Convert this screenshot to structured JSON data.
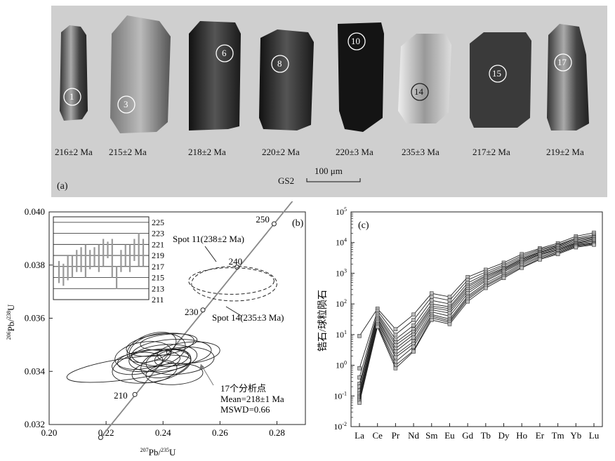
{
  "panel_a": {
    "letter": "(a)",
    "sample": "GS2",
    "scale_label": "100 μm",
    "grains": [
      {
        "spot": "1",
        "age": "216±2 Ma"
      },
      {
        "spot": "3",
        "age": "215±2 Ma"
      },
      {
        "spot": "6",
        "age": "218±2 Ma"
      },
      {
        "spot": "8",
        "age": "220±2 Ma"
      },
      {
        "spot": "10",
        "age": "220±3 Ma"
      },
      {
        "spot": "14",
        "age": "235±3 Ma"
      },
      {
        "spot": "15",
        "age": "217±2 Ma"
      },
      {
        "spot": "17",
        "age": "219±2 Ma"
      }
    ]
  },
  "panel_b": {
    "letter": "(b)",
    "concordia_ages": [
      "210",
      "230",
      "240",
      "250"
    ],
    "inset_ticks": [
      "225",
      "223",
      "221",
      "219",
      "217",
      "215",
      "213",
      "211"
    ],
    "spot11_label": "Spot 11(238±2 Ma)",
    "spot14_label": "Spot 14(235±3 Ma)",
    "result_count": "17个分析点",
    "result_mean": "Mean=218±1 Ma",
    "result_mswd": "MSWD=0.66"
  },
  "panel_c": {
    "letter": "(c)"
  },
  "chart_data": [
    {
      "type": "scatter",
      "panel": "b",
      "xlabel": "207Pb/235U",
      "ylabel": "206Pb/238U",
      "xlim": [
        0.2,
        0.29
      ],
      "ylim": [
        0.032,
        0.04
      ],
      "x_ticks": [
        "0.20",
        "0.22",
        "0.24",
        "0.26",
        "0.28"
      ],
      "y_ticks": [
        "0.032",
        "0.034",
        "0.036",
        "0.038",
        "0.040"
      ],
      "concordia_points": [
        {
          "age": 200,
          "x": 0.2181,
          "y": 0.03151
        },
        {
          "age": 210,
          "x": 0.2301,
          "y": 0.03313
        },
        {
          "age": 220,
          "x": 0.242,
          "y": 0.03471
        },
        {
          "age": 230,
          "x": 0.254,
          "y": 0.03631
        },
        {
          "age": 240,
          "x": 0.266,
          "y": 0.03792
        },
        {
          "age": 250,
          "x": 0.279,
          "y": 0.03955
        }
      ],
      "ellipses": [
        {
          "x": 0.228,
          "y": 0.0341,
          "rx": 0.022,
          "ry": 0.0004,
          "angle": 8
        },
        {
          "x": 0.236,
          "y": 0.0342,
          "rx": 0.014,
          "ry": 0.0006,
          "angle": 10
        },
        {
          "x": 0.24,
          "y": 0.0345,
          "rx": 0.012,
          "ry": 0.0005,
          "angle": 6
        },
        {
          "x": 0.243,
          "y": 0.0347,
          "rx": 0.014,
          "ry": 0.0005,
          "angle": 4
        },
        {
          "x": 0.238,
          "y": 0.0348,
          "rx": 0.01,
          "ry": 0.0006,
          "angle": 12
        },
        {
          "x": 0.235,
          "y": 0.0344,
          "rx": 0.011,
          "ry": 0.0004,
          "angle": 5
        },
        {
          "x": 0.241,
          "y": 0.0343,
          "rx": 0.009,
          "ry": 0.0005,
          "angle": 15
        },
        {
          "x": 0.244,
          "y": 0.0339,
          "rx": 0.01,
          "ry": 0.0004,
          "angle": 3
        },
        {
          "x": 0.239,
          "y": 0.035,
          "rx": 0.012,
          "ry": 0.0004,
          "angle": 8
        },
        {
          "x": 0.233,
          "y": 0.0346,
          "rx": 0.01,
          "ry": 0.0005,
          "angle": 10
        },
        {
          "x": 0.246,
          "y": 0.0344,
          "rx": 0.012,
          "ry": 0.0005,
          "angle": 6
        },
        {
          "x": 0.237,
          "y": 0.034,
          "rx": 0.008,
          "ry": 0.0004,
          "angle": 12
        },
        {
          "x": 0.242,
          "y": 0.0351,
          "rx": 0.01,
          "ry": 0.0003,
          "angle": 5
        },
        {
          "x": 0.236,
          "y": 0.0349,
          "rx": 0.009,
          "ry": 0.0005,
          "angle": 20
        },
        {
          "x": 0.249,
          "y": 0.0347,
          "rx": 0.011,
          "ry": 0.0004,
          "angle": 5
        },
        {
          "x": 0.231,
          "y": 0.0343,
          "rx": 0.009,
          "ry": 0.0004,
          "angle": 8
        },
        {
          "x": 0.243,
          "y": 0.0345,
          "rx": 0.006,
          "ry": 0.0003,
          "angle": 10
        }
      ],
      "dashed_ellipses": [
        {
          "label": "Spot 11(238±2 Ma)",
          "x": 0.264,
          "y": 0.0374,
          "rx": 0.015,
          "ry": 0.0005,
          "angle": 0
        },
        {
          "label": "Spot 14(235±3 Ma)",
          "x": 0.265,
          "y": 0.0373,
          "rx": 0.015,
          "ry": 0.00065,
          "angle": 0
        }
      ],
      "inset": {
        "ylim": [
          211,
          226
        ],
        "lines": [
          225,
          223,
          221,
          219,
          217,
          215,
          213,
          211
        ],
        "bars": [
          [
            214,
            218
          ],
          [
            213.5,
            217.5
          ],
          [
            214.5,
            219
          ],
          [
            215,
            219
          ],
          [
            216,
            220
          ],
          [
            216,
            220.5
          ],
          [
            215,
            221
          ],
          [
            216.5,
            220
          ],
          [
            217,
            220.5
          ],
          [
            216,
            221
          ],
          [
            217,
            222
          ],
          [
            218.5,
            221.5
          ],
          [
            215,
            222
          ],
          [
            213,
            217
          ],
          [
            216,
            220
          ],
          [
            217,
            221
          ],
          [
            216,
            221
          ],
          [
            218,
            222
          ],
          [
            217,
            223
          ],
          [
            217,
            222
          ]
        ]
      }
    },
    {
      "type": "line",
      "panel": "c",
      "ylabel": "锆石/球粒陨石",
      "yscale": "log",
      "ylim": [
        0.01,
        100000
      ],
      "y_ticks": [
        "10-2",
        "10-1",
        "100",
        "101",
        "102",
        "103",
        "104",
        "105"
      ],
      "categories": [
        "La",
        "Ce",
        "Pr",
        "Nd",
        "Sm",
        "Eu",
        "Gd",
        "Tb",
        "Dy",
        "Ho",
        "Er",
        "Tm",
        "Yb",
        "Lu"
      ],
      "series": [
        {
          "values": [
            9,
            70,
            15,
            45,
            220,
            170,
            750,
            1300,
            2200,
            4200,
            6500,
            9500,
            16000,
            21000
          ]
        },
        {
          "values": [
            0.8,
            60,
            10,
            30,
            170,
            130,
            600,
            1100,
            1900,
            3700,
            6000,
            8500,
            14000,
            18000
          ]
        },
        {
          "values": [
            0.4,
            50,
            7,
            20,
            130,
            100,
            480,
            950,
            1700,
            3300,
            5500,
            8000,
            13000,
            16000
          ]
        },
        {
          "values": [
            0.25,
            45,
            5.5,
            15,
            100,
            80,
            400,
            850,
            1500,
            3000,
            5000,
            7500,
            12000,
            15000
          ]
        },
        {
          "values": [
            0.2,
            40,
            4.5,
            12,
            85,
            70,
            350,
            780,
            1400,
            2800,
            4800,
            7000,
            11000,
            14000
          ]
        },
        {
          "values": [
            0.15,
            35,
            3.5,
            10,
            75,
            60,
            300,
            700,
            1300,
            2600,
            4500,
            6500,
            10000,
            13000
          ]
        },
        {
          "values": [
            0.12,
            32,
            2.8,
            8,
            65,
            50,
            260,
            620,
            1200,
            2400,
            4200,
            6000,
            9500,
            12000
          ]
        },
        {
          "values": [
            0.1,
            28,
            2.2,
            6,
            55,
            40,
            220,
            560,
            1100,
            2200,
            4000,
            5600,
            9000,
            11000
          ]
        },
        {
          "values": [
            0.09,
            25,
            1.8,
            5,
            45,
            32,
            180,
            480,
            950,
            2000,
            3600,
            5200,
            8500,
            10000
          ]
        },
        {
          "values": [
            0.08,
            22,
            1.3,
            4,
            40,
            28,
            160,
            420,
            850,
            1800,
            3300,
            4800,
            8000,
            9500
          ]
        },
        {
          "values": [
            0.07,
            20,
            1.0,
            3,
            35,
            25,
            140,
            380,
            780,
            1600,
            3000,
            4500,
            7500,
            9000
          ]
        },
        {
          "values": [
            0.06,
            18,
            0.8,
            2.8,
            30,
            22,
            120,
            330,
            700,
            1500,
            2800,
            4200,
            7000,
            8500
          ]
        }
      ]
    }
  ]
}
